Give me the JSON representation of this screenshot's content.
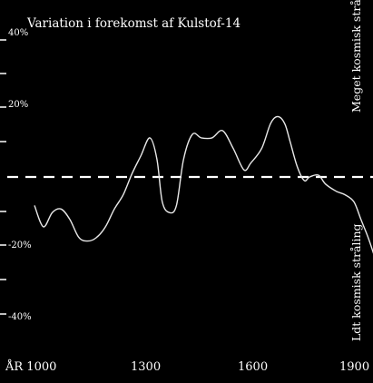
{
  "chart_data": {
    "type": "line",
    "title": "Variation i forekomst af Kulstof-14",
    "x_axis_prefix": "ÅR",
    "x_ticks": [
      1000,
      1300,
      1600,
      1900
    ],
    "x_range": [
      1000,
      1900
    ],
    "y_ticks": [
      "40%",
      "20%",
      "-20%",
      "-40%"
    ],
    "y_tick_values": [
      40,
      20,
      -20,
      -40
    ],
    "y_range": [
      -45,
      40
    ],
    "reference_line": {
      "y": 0,
      "style": "dashed"
    },
    "annotation_high": "Meget kosmisk stråling",
    "annotation_low": "Ldt kosmisk stråling",
    "series": [
      {
        "x": [
          1000,
          1025,
          1050,
          1075,
          1100,
          1125,
          1150,
          1175,
          1200,
          1225,
          1250,
          1275,
          1300,
          1325,
          1345,
          1360,
          1380,
          1400,
          1420,
          1445,
          1470,
          1500,
          1530,
          1560,
          1590,
          1610,
          1640,
          1665,
          1685,
          1705,
          1720,
          1740,
          1760,
          1775,
          1800,
          1820,
          1850,
          1875,
          1900,
          1920,
          1940,
          1960
        ],
        "y": [
          -8,
          -14,
          -10,
          -9,
          -12,
          -17,
          -18,
          -17,
          -14,
          -9,
          -5,
          1,
          6,
          11,
          5,
          -7,
          -10,
          -8,
          5,
          12,
          11,
          11,
          13,
          8,
          2,
          4,
          8,
          15,
          17,
          15,
          10,
          3,
          -1,
          0,
          0.5,
          -2,
          -4,
          -5,
          -7,
          -12,
          -17,
          -23
        ]
      }
    ],
    "colors": {
      "background": "#000000",
      "foreground": "#ffffff"
    }
  }
}
